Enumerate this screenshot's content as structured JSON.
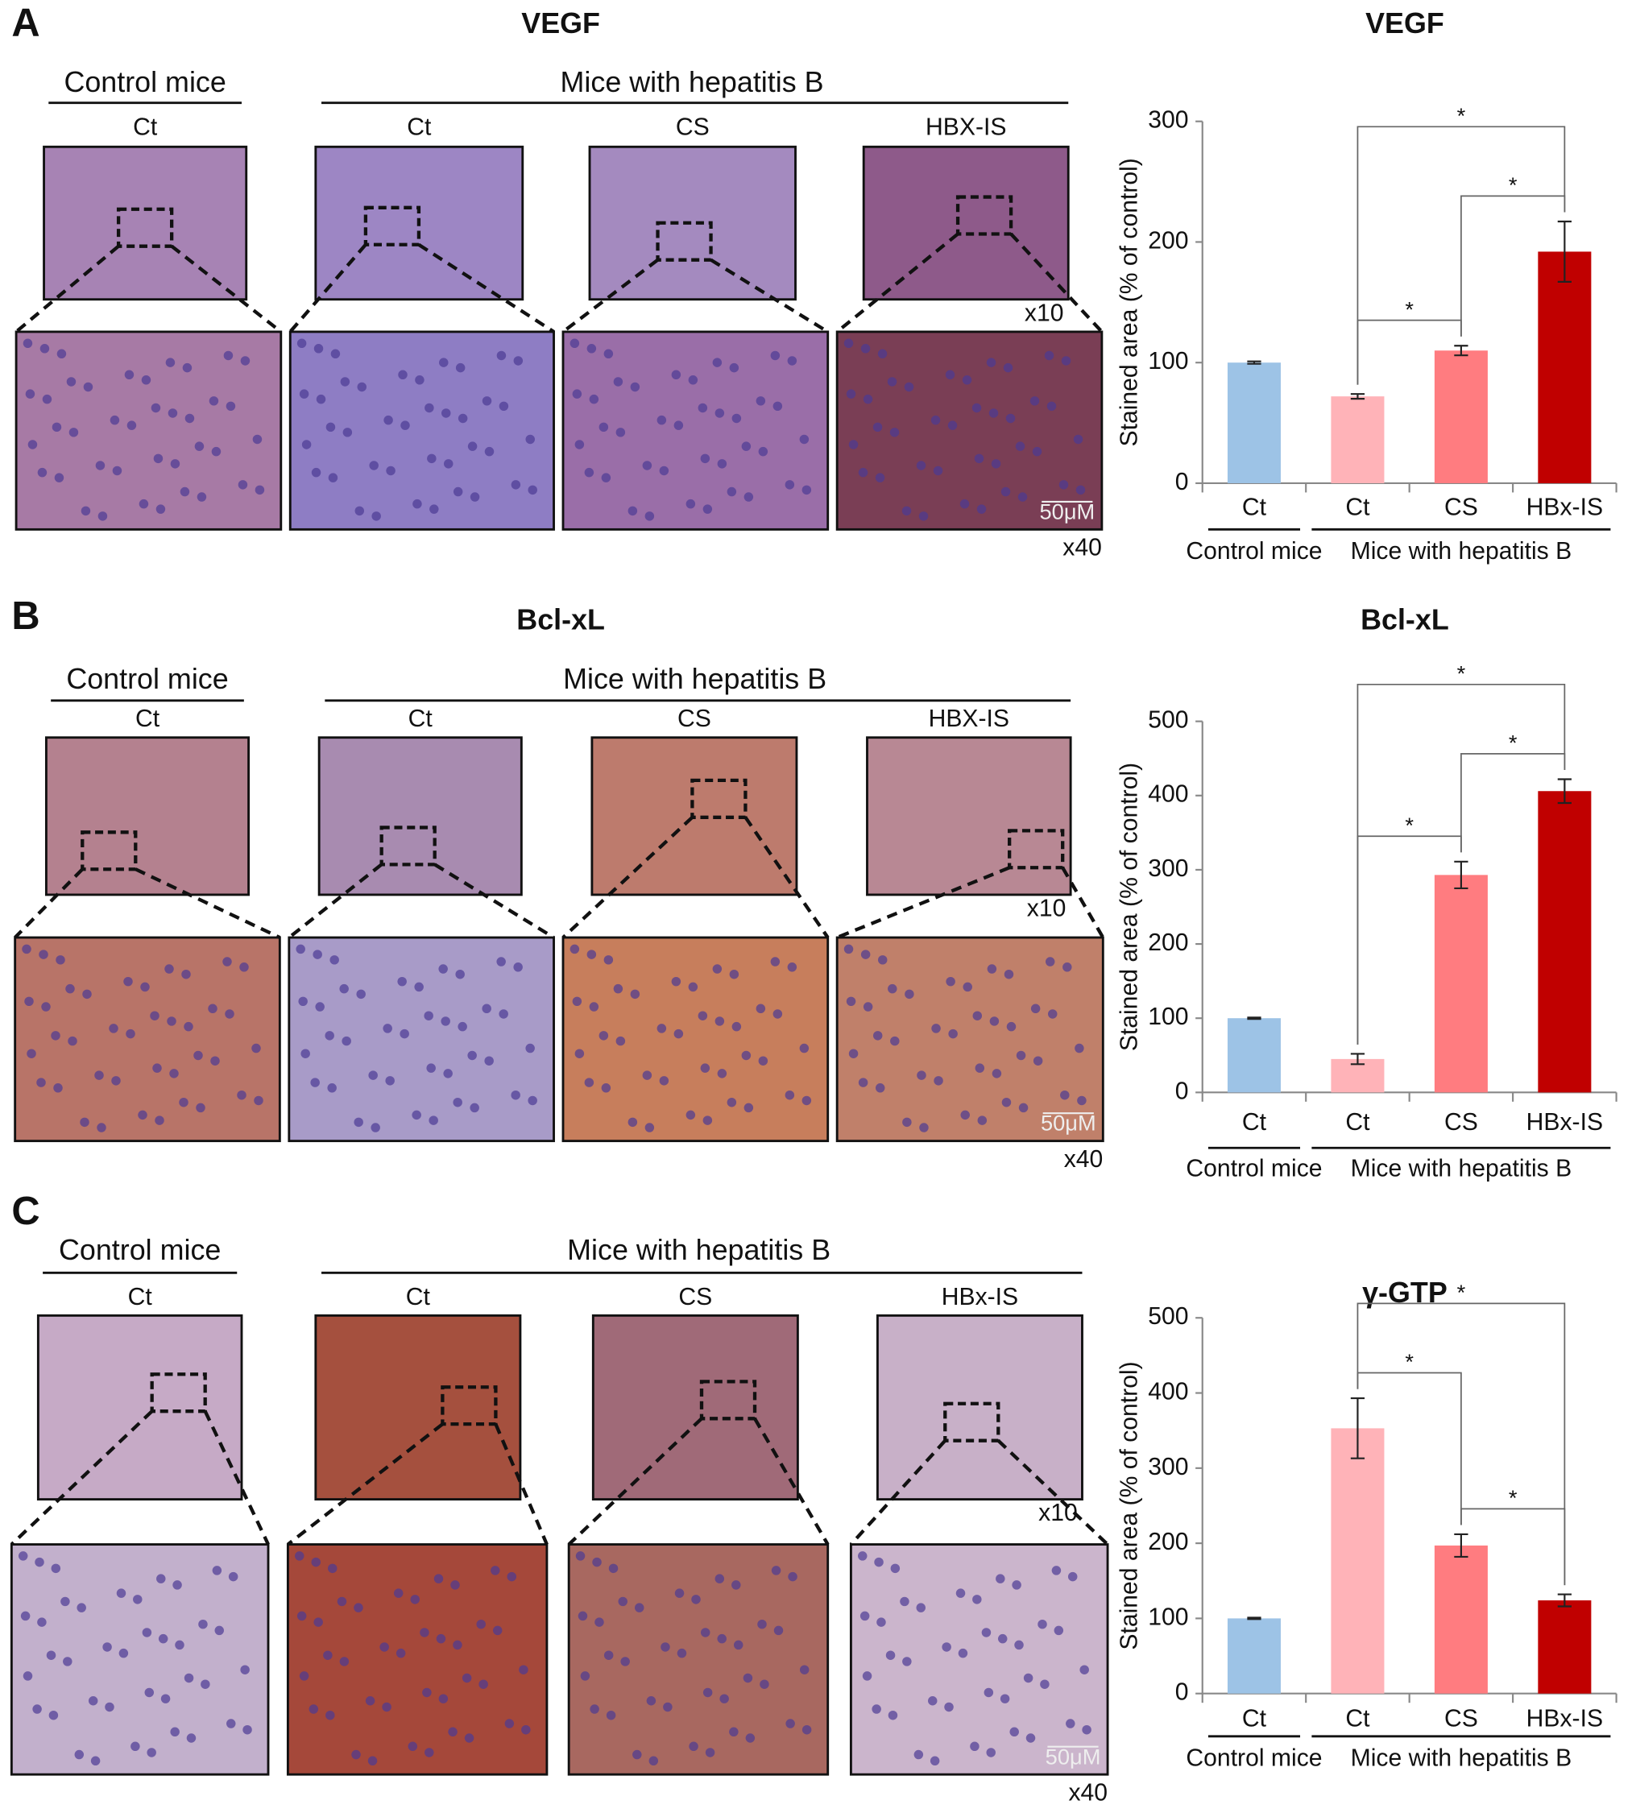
{
  "panels": [
    {
      "letter": "A",
      "title": "VEGF",
      "group_labels": [
        "Control mice",
        "Mice with hepatitis B"
      ],
      "image_labels": [
        "Ct",
        "Ct",
        "CS",
        "HBX-IS"
      ],
      "low_mag": "x10",
      "high_mag": "x40",
      "scale_bar": "50μM"
    },
    {
      "letter": "B",
      "title": "Bcl-xL",
      "group_labels": [
        "Control mice",
        "Mice with hepatitis B"
      ],
      "image_labels": [
        "Ct",
        "Ct",
        "CS",
        "HBX-IS"
      ],
      "low_mag": "x10",
      "high_mag": "x40",
      "scale_bar": "50μM"
    },
    {
      "letter": "C",
      "group_labels": [
        "Control mice",
        "Mice with hepatitis B"
      ],
      "image_labels": [
        "Ct",
        "Ct",
        "CS",
        "HBx-IS"
      ],
      "low_mag": "x10",
      "high_mag": "x40",
      "scale_bar": "50μM"
    }
  ],
  "chart_data": [
    {
      "type": "bar",
      "title": "VEGF",
      "y_label": "Stained area (% of control)",
      "categories": [
        "Ct",
        "Ct",
        "CS",
        "HBx-IS"
      ],
      "groups": [
        {
          "label": "Control mice",
          "count": 1
        },
        {
          "label": "Mice with hepatitis B",
          "count": 3
        }
      ],
      "values": [
        100,
        72,
        110,
        192
      ],
      "errors": [
        1,
        2,
        4,
        25
      ],
      "colors": [
        "#9dc3e6",
        "#ffb3b8",
        "#ff7c80",
        "#c00000"
      ],
      "ylim": [
        0,
        300
      ],
      "yticks": [
        0,
        100,
        200,
        300
      ],
      "significance": [
        {
          "from": 1,
          "to": 3,
          "label": "*"
        },
        {
          "from": 2,
          "to": 3,
          "label": "*"
        },
        {
          "from": 1,
          "to": 2,
          "label": "*"
        }
      ]
    },
    {
      "type": "bar",
      "title": "Bcl-xL",
      "y_label": "Stained area (% of control)",
      "categories": [
        "Ct",
        "Ct",
        "CS",
        "HBx-IS"
      ],
      "groups": [
        {
          "label": "Control mice",
          "count": 1
        },
        {
          "label": "Mice with hepatitis B",
          "count": 3
        }
      ],
      "values": [
        100,
        45,
        293,
        406
      ],
      "errors": [
        1,
        7,
        18,
        16
      ],
      "colors": [
        "#9dc3e6",
        "#ffb3b8",
        "#ff7c80",
        "#c00000"
      ],
      "ylim": [
        0,
        500
      ],
      "yticks": [
        0,
        100,
        200,
        300,
        400,
        500
      ],
      "significance": [
        {
          "from": 1,
          "to": 3,
          "label": "*"
        },
        {
          "from": 2,
          "to": 3,
          "label": "*"
        },
        {
          "from": 1,
          "to": 2,
          "label": "*"
        }
      ]
    },
    {
      "type": "bar",
      "title": "γ-GTP",
      "y_label": "Stained area (% of control)",
      "categories": [
        "Ct",
        "Ct",
        "CS",
        "HBx-IS"
      ],
      "groups": [
        {
          "label": "Control mice",
          "count": 1
        },
        {
          "label": "Mice with hepatitis B",
          "count": 3
        }
      ],
      "values": [
        100,
        353,
        197,
        124
      ],
      "errors": [
        1,
        40,
        15,
        8
      ],
      "colors": [
        "#9dc3e6",
        "#ffb3b8",
        "#ff7c80",
        "#c00000"
      ],
      "ylim": [
        0,
        500
      ],
      "yticks": [
        0,
        100,
        200,
        300,
        400,
        500
      ],
      "significance": [
        {
          "from": 1,
          "to": 3,
          "label": "*"
        },
        {
          "from": 1,
          "to": 2,
          "label": "*"
        },
        {
          "from": 2,
          "to": 3,
          "label": "*"
        }
      ]
    }
  ]
}
